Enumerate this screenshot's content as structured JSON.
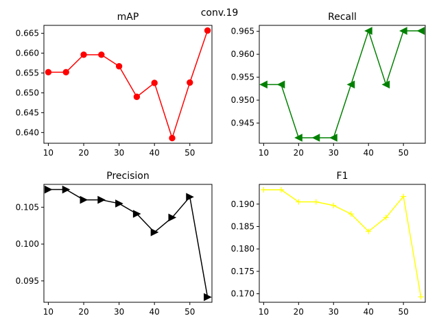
{
  "suptitle": "conv.19",
  "chart_data": [
    {
      "type": "line",
      "title": "mAP",
      "xlabel": "",
      "ylabel": "",
      "x": [
        10,
        15,
        20,
        25,
        30,
        35,
        40,
        45,
        50,
        55
      ],
      "series": [
        {
          "values": [
            0.6552,
            0.6552,
            0.6596,
            0.6596,
            0.6567,
            0.649,
            0.6525,
            0.6386,
            0.6526,
            0.6657
          ]
        }
      ],
      "color": "#ff0000",
      "marker": "circle",
      "xlim": [
        8.75,
        56.25
      ],
      "ylim": [
        0.6373,
        0.667
      ],
      "xticks": [
        10,
        20,
        30,
        40,
        50
      ],
      "yticks": [
        0.64,
        0.645,
        0.65,
        0.655,
        0.66,
        0.665
      ],
      "ytick_labels": [
        "0.640",
        "0.645",
        "0.650",
        "0.655",
        "0.660",
        "0.665"
      ],
      "grid": false
    },
    {
      "type": "line",
      "title": "Recall",
      "xlabel": "",
      "ylabel": "",
      "x": [
        10,
        15,
        20,
        25,
        30,
        35,
        40,
        45,
        50,
        55
      ],
      "series": [
        {
          "values": [
            0.9534,
            0.9534,
            0.9418,
            0.9418,
            0.9418,
            0.9534,
            0.9651,
            0.9534,
            0.9651,
            0.9651
          ]
        }
      ],
      "color": "#008000",
      "marker": "triangle-left",
      "xlim": [
        8.75,
        56.25
      ],
      "ylim": [
        0.9406,
        0.9663
      ],
      "xticks": [
        10,
        20,
        30,
        40,
        50
      ],
      "yticks": [
        0.945,
        0.95,
        0.955,
        0.96,
        0.965
      ],
      "ytick_labels": [
        "0.945",
        "0.950",
        "0.955",
        "0.960",
        "0.965"
      ],
      "grid": false
    },
    {
      "type": "line",
      "title": "Precision",
      "xlabel": "",
      "ylabel": "",
      "x": [
        10,
        15,
        20,
        25,
        30,
        35,
        40,
        45,
        50,
        55
      ],
      "series": [
        {
          "values": [
            0.1074,
            0.1074,
            0.106,
            0.106,
            0.1055,
            0.1041,
            0.1016,
            0.1036,
            0.1064,
            0.0928
          ]
        }
      ],
      "color": "#000000",
      "marker": "triangle-right",
      "xlim": [
        8.75,
        56.25
      ],
      "ylim": [
        0.0921,
        0.1081
      ],
      "xticks": [
        10,
        20,
        30,
        40,
        50
      ],
      "yticks": [
        0.095,
        0.1,
        0.105
      ],
      "ytick_labels": [
        "0.095",
        "0.100",
        "0.105"
      ],
      "grid": false
    },
    {
      "type": "line",
      "title": "F1",
      "xlabel": "",
      "ylabel": "",
      "x": [
        10,
        15,
        20,
        25,
        30,
        35,
        40,
        45,
        50,
        55
      ],
      "series": [
        {
          "values": [
            0.1932,
            0.1932,
            0.1905,
            0.1905,
            0.1897,
            0.1878,
            0.1839,
            0.187,
            0.1917,
            0.1693
          ]
        }
      ],
      "color": "#ffff00",
      "marker": "plus",
      "xlim": [
        8.75,
        56.25
      ],
      "ylim": [
        0.1681,
        0.1944
      ],
      "xticks": [
        10,
        20,
        30,
        40,
        50
      ],
      "yticks": [
        0.17,
        0.175,
        0.18,
        0.185,
        0.19
      ],
      "ytick_labels": [
        "0.170",
        "0.175",
        "0.180",
        "0.185",
        "0.190"
      ],
      "grid": false
    }
  ]
}
